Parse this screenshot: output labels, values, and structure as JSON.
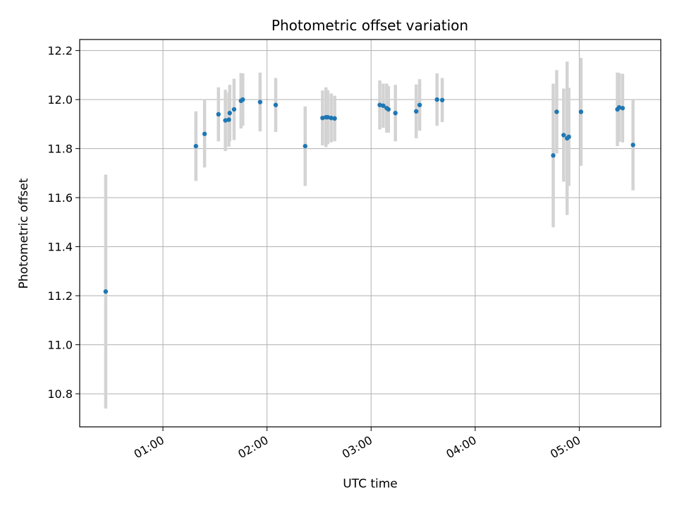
{
  "chart_data": {
    "type": "scatter",
    "title": "Photometric offset variation",
    "xlabel": "UTC time",
    "ylabel": "Photometric offset",
    "x_axis_type": "time",
    "xlim": [
      "00:12",
      "05:47"
    ],
    "ylim": [
      10.665,
      12.245
    ],
    "grid": true,
    "x_ticks": [
      "01:00",
      "02:00",
      "03:00",
      "04:00",
      "05:00"
    ],
    "y_ticks": [
      "10.8",
      "11.0",
      "11.2",
      "11.4",
      "11.6",
      "11.8",
      "12.0",
      "12.2"
    ],
    "series": [
      {
        "style": "points with vertical error bars",
        "point_color": "#1f77b4",
        "error_bar_color": "#d3d3d3",
        "points": [
          {
            "time": "00:27",
            "y": 11.217,
            "err": 0.477
          },
          {
            "time": "01:19",
            "y": 11.81,
            "err": 0.142
          },
          {
            "time": "01:24",
            "y": 11.86,
            "err": 0.137
          },
          {
            "time": "01:32",
            "y": 11.94,
            "err": 0.11
          },
          {
            "time": "01:36",
            "y": 11.915,
            "err": 0.125
          },
          {
            "time": "01:38",
            "y": 11.918,
            "err": 0.11
          },
          {
            "time": "01:38.5",
            "y": 11.945,
            "err": 0.115
          },
          {
            "time": "01:41",
            "y": 11.96,
            "err": 0.125
          },
          {
            "time": "01:45",
            "y": 11.995,
            "err": 0.113
          },
          {
            "time": "01:46",
            "y": 12.0,
            "err": 0.107
          },
          {
            "time": "01:56",
            "y": 11.99,
            "err": 0.12
          },
          {
            "time": "02:05",
            "y": 11.978,
            "err": 0.11
          },
          {
            "time": "02:22",
            "y": 11.81,
            "err": 0.162
          },
          {
            "time": "02:32",
            "y": 11.925,
            "err": 0.112
          },
          {
            "time": "02:34",
            "y": 11.928,
            "err": 0.122
          },
          {
            "time": "02:35",
            "y": 11.928,
            "err": 0.11
          },
          {
            "time": "02:37",
            "y": 11.925,
            "err": 0.1
          },
          {
            "time": "02:39",
            "y": 11.923,
            "err": 0.093
          },
          {
            "time": "03:05",
            "y": 11.978,
            "err": 0.1
          },
          {
            "time": "03:07",
            "y": 11.975,
            "err": 0.09
          },
          {
            "time": "03:09",
            "y": 11.965,
            "err": 0.1
          },
          {
            "time": "03:10",
            "y": 11.96,
            "err": 0.095
          },
          {
            "time": "03:14",
            "y": 11.945,
            "err": 0.115
          },
          {
            "time": "03:26",
            "y": 11.952,
            "err": 0.11
          },
          {
            "time": "03:28",
            "y": 11.978,
            "err": 0.105
          },
          {
            "time": "03:38",
            "y": 12.0,
            "err": 0.107
          },
          {
            "time": "03:41",
            "y": 11.998,
            "err": 0.09
          },
          {
            "time": "04:45",
            "y": 11.772,
            "err": 0.293
          },
          {
            "time": "04:47",
            "y": 11.95,
            "err": 0.17
          },
          {
            "time": "04:51",
            "y": 11.855,
            "err": 0.19
          },
          {
            "time": "04:53",
            "y": 11.842,
            "err": 0.313
          },
          {
            "time": "04:54",
            "y": 11.848,
            "err": 0.2
          },
          {
            "time": "05:01",
            "y": 11.95,
            "err": 0.22
          },
          {
            "time": "05:22",
            "y": 11.96,
            "err": 0.15
          },
          {
            "time": "05:23",
            "y": 11.968,
            "err": 0.14
          },
          {
            "time": "05:25",
            "y": 11.965,
            "err": 0.14
          },
          {
            "time": "05:31",
            "y": 11.815,
            "err": 0.185
          }
        ]
      }
    ]
  }
}
